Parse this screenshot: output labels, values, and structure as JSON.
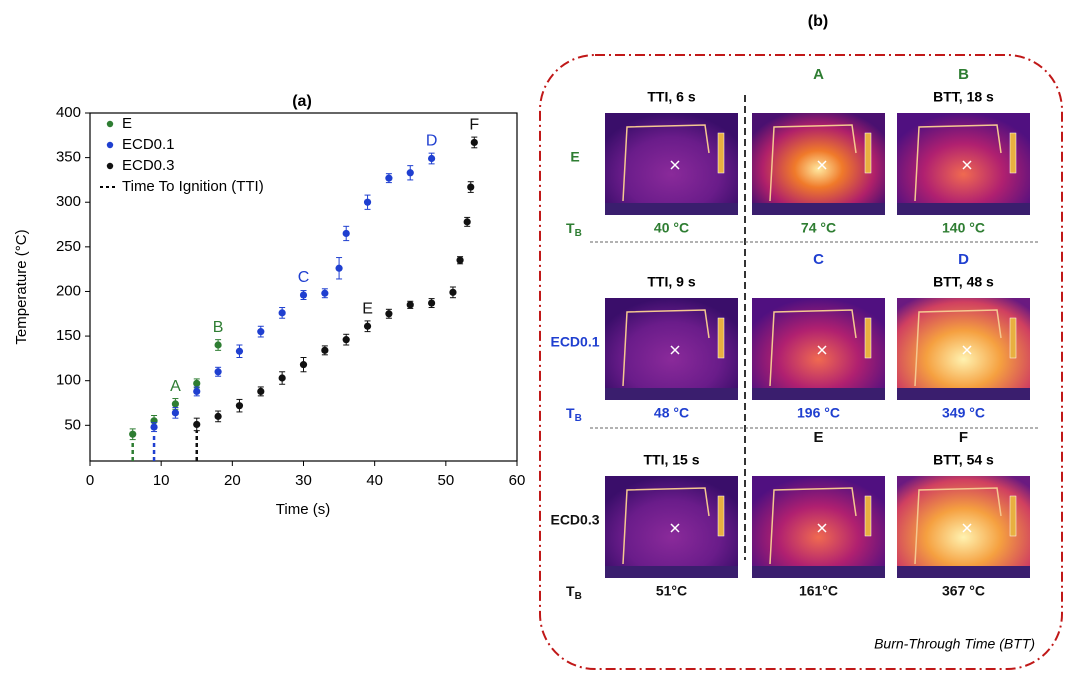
{
  "chart_data": {
    "type": "scatter",
    "title": "(a)",
    "x_label": "Time (s)",
    "y_label": "Temperature (°C)",
    "xlim": [
      0,
      60
    ],
    "xticks": [
      0,
      10,
      20,
      30,
      40,
      50,
      60
    ],
    "ylim": [
      10,
      400
    ],
    "yticks": [
      50,
      100,
      150,
      200,
      250,
      300,
      350,
      400
    ],
    "series": [
      {
        "name": "E",
        "color": "#2e7d32",
        "x": [
          6,
          9,
          12,
          15,
          18
        ],
        "values": [
          40,
          55,
          74,
          97,
          140
        ],
        "errors": [
          6,
          6,
          6,
          5,
          6
        ]
      },
      {
        "name": "ECD0.1",
        "color": "#1f3fd0",
        "x": [
          9,
          12,
          15,
          18,
          21,
          24,
          27,
          30,
          33,
          35,
          36,
          39,
          42,
          45,
          48
        ],
        "values": [
          48,
          64,
          88,
          110,
          133,
          155,
          176,
          196,
          198,
          226,
          265,
          300,
          327,
          333,
          349
        ],
        "errors": [
          5,
          6,
          5,
          5,
          7,
          6,
          6,
          5,
          5,
          12,
          8,
          8,
          5,
          8,
          6
        ]
      },
      {
        "name": "ECD0.3",
        "color": "#111111",
        "x": [
          15,
          18,
          21,
          24,
          27,
          30,
          33,
          36,
          39,
          42,
          45,
          48,
          51,
          52,
          53,
          53.5,
          54
        ],
        "values": [
          51,
          60,
          72,
          88,
          103,
          118,
          134,
          146,
          161,
          175,
          185,
          187,
          199,
          235,
          278,
          317,
          367
        ],
        "errors": [
          7,
          6,
          7,
          5,
          7,
          8,
          5,
          6,
          6,
          5,
          4,
          5,
          6,
          4,
          5,
          6,
          6
        ]
      }
    ],
    "tti": {
      "name": "Time To Ignition (TTI)",
      "x": [
        6,
        9,
        15
      ]
    },
    "annotations": [
      {
        "text": "A",
        "x": 12,
        "y": 74,
        "color": "#2e7d32"
      },
      {
        "text": "B",
        "x": 18,
        "y": 140,
        "color": "#2e7d32"
      },
      {
        "text": "C",
        "x": 30,
        "y": 196,
        "color": "#1f3fd0"
      },
      {
        "text": "D",
        "x": 48,
        "y": 349,
        "color": "#1f3fd0"
      },
      {
        "text": "E",
        "x": 39,
        "y": 161,
        "color": "#111111"
      },
      {
        "text": "F",
        "x": 54,
        "y": 367,
        "color": "#111111"
      }
    ]
  },
  "panel_b": {
    "title": "(b)",
    "tb_label": "T",
    "tb_sub": "B",
    "footer": "Burn-Through Time (BTT)",
    "rows": [
      {
        "name": "E",
        "color": "#2e7d32",
        "letters": [
          "A",
          "B"
        ],
        "captions": [
          "TTI, 6 s",
          "BTT, 18 s"
        ],
        "tb": [
          "40 °C",
          "74 °C",
          "140 °C"
        ]
      },
      {
        "name": "ECD0.1",
        "color": "#1f3fd0",
        "letters": [
          "C",
          "D"
        ],
        "captions": [
          "TTI, 9 s",
          "BTT, 48 s"
        ],
        "tb": [
          "48 °C",
          "196 °C",
          "349 °C"
        ]
      },
      {
        "name": "ECD0.3",
        "color": "#111111",
        "letters": [
          "E",
          "F"
        ],
        "captions": [
          "TTI, 15 s",
          "BTT, 54 s"
        ],
        "tb": [
          "51°C",
          "161°C",
          "367 °C"
        ]
      }
    ]
  }
}
